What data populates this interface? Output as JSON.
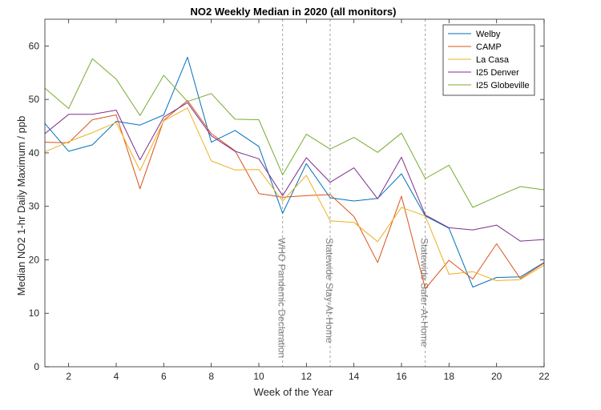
{
  "chart_data": {
    "type": "line",
    "title": "NO2 Weekly Median in 2020 (all monitors)",
    "xlabel": "Week of the Year",
    "ylabel": "Median NO2 1-hr Daily Maximum / ppb",
    "xlim": [
      1,
      22
    ],
    "ylim": [
      0,
      65
    ],
    "xticks": [
      2,
      4,
      6,
      8,
      10,
      12,
      14,
      16,
      18,
      20,
      22
    ],
    "yticks": [
      0,
      10,
      20,
      30,
      40,
      50,
      60
    ],
    "x": [
      1,
      2,
      3,
      4,
      5,
      6,
      7,
      8,
      9,
      10,
      11,
      12,
      13,
      14,
      15,
      16,
      17,
      18,
      19,
      20,
      21,
      22
    ],
    "series": [
      {
        "name": "Welby",
        "color": "#0072BD",
        "values": [
          45.5,
          40.3,
          41.5,
          45.9,
          45.2,
          47.1,
          57.9,
          42.0,
          44.2,
          41.2,
          28.7,
          38.0,
          31.6,
          31.0,
          31.5,
          36.1,
          28.2,
          25.9,
          14.9,
          16.7,
          16.8,
          19.5
        ]
      },
      {
        "name": "CAMP",
        "color": "#D95319",
        "values": [
          42.0,
          41.9,
          46.2,
          47.1,
          33.3,
          46.1,
          49.8,
          43.6,
          40.4,
          32.4,
          31.7,
          32.0,
          32.2,
          28.1,
          19.5,
          31.9,
          14.6,
          19.9,
          16.4,
          23.0,
          16.5,
          19.4
        ]
      },
      {
        "name": "La Casa",
        "color": "#EDB120",
        "values": [
          40.2,
          42.1,
          43.8,
          45.7,
          36.7,
          46.0,
          48.4,
          38.5,
          36.8,
          36.9,
          31.0,
          35.8,
          27.3,
          27.0,
          23.4,
          29.8,
          28.2,
          17.3,
          17.8,
          16.1,
          16.3,
          19.0
        ]
      },
      {
        "name": "I25 Denver",
        "color": "#7E2F8E",
        "values": [
          43.6,
          47.2,
          47.2,
          48.0,
          38.7,
          46.7,
          49.4,
          43.2,
          40.3,
          38.9,
          32.0,
          39.1,
          34.5,
          37.2,
          31.4,
          39.2,
          28.4,
          26.0,
          25.6,
          26.5,
          23.5,
          23.8
        ]
      },
      {
        "name": "I25 Globeville",
        "color": "#77AC30",
        "values": [
          52.1,
          48.3,
          57.6,
          53.8,
          47.0,
          54.5,
          49.6,
          51.1,
          46.3,
          46.2,
          35.9,
          43.5,
          40.7,
          42.9,
          40.1,
          43.7,
          35.2,
          37.7,
          29.8,
          31.8,
          33.7,
          33.1
        ]
      }
    ],
    "vlines": [
      {
        "x": 11,
        "label": "WHO Pandemic Declaration"
      },
      {
        "x": 13,
        "label": "Statewide Stay-At-Home"
      },
      {
        "x": 17,
        "label": "Statewide Safer-At-Home"
      }
    ],
    "grid": false,
    "legend_position": "top-right"
  }
}
